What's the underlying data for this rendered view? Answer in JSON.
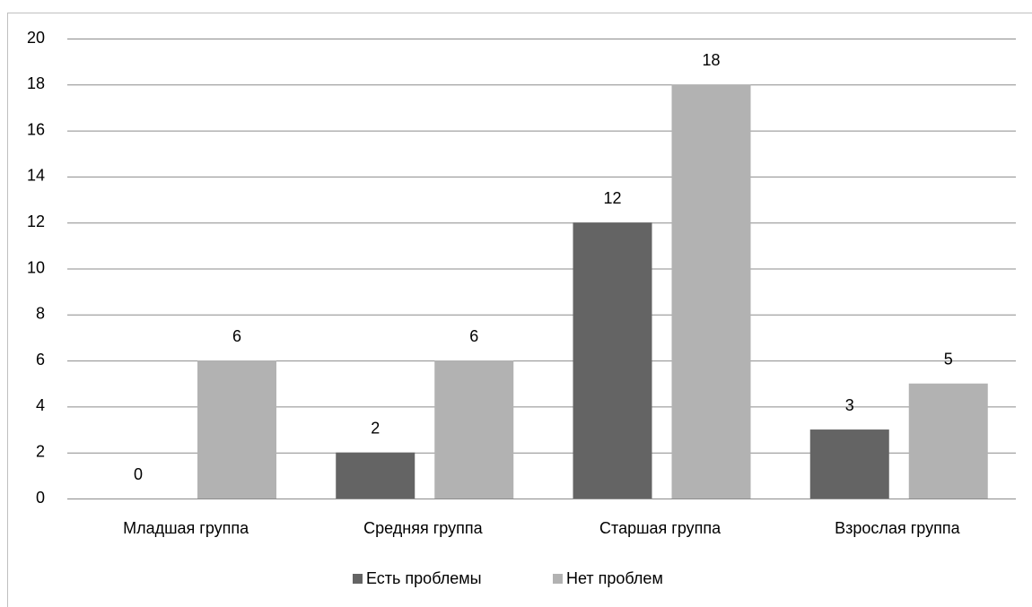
{
  "chart_data": {
    "type": "bar",
    "categories": [
      "Младшая группа",
      "Средняя группа",
      "Старшая группа",
      "Взрослая группа"
    ],
    "series": [
      {
        "name": "Есть проблемы",
        "color": "#646464",
        "values": [
          0,
          2,
          12,
          3
        ]
      },
      {
        "name": "Нет проблем",
        "color": "#b2b2b2",
        "values": [
          6,
          6,
          18,
          5
        ]
      }
    ],
    "ylim": [
      0,
      20
    ],
    "yticks": [
      0,
      2,
      4,
      6,
      8,
      10,
      12,
      14,
      16,
      18,
      20
    ],
    "grid": true,
    "legend": "bottom"
  }
}
